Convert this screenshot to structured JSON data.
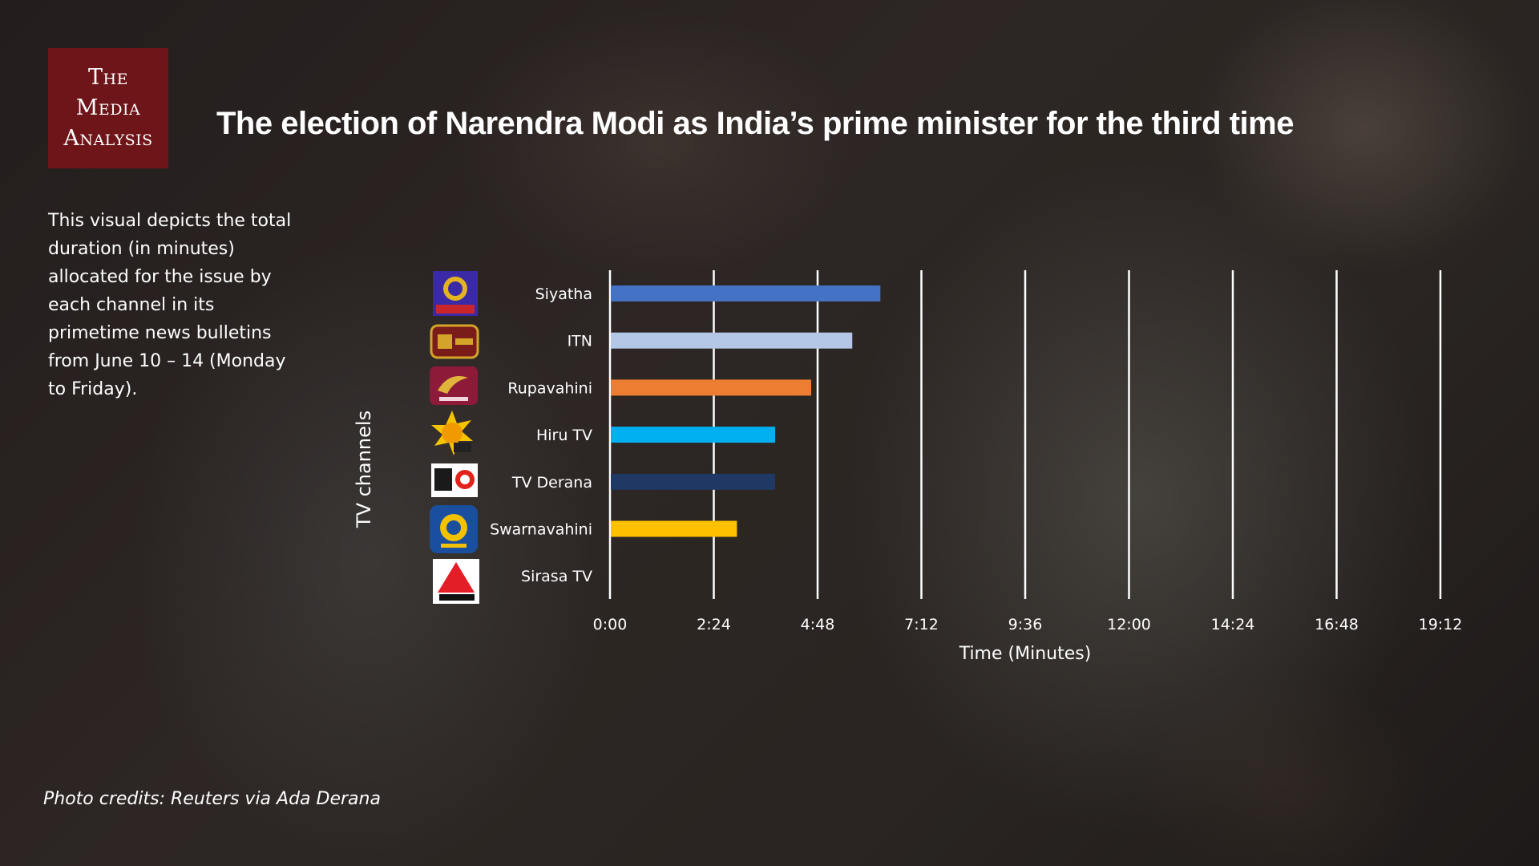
{
  "logo": {
    "lines": [
      "The",
      "Media",
      "Analysis"
    ]
  },
  "title": "The election of Narendra Modi as India’s prime minister for the third time",
  "description": "This visual depicts the total duration  (in minutes) allocated for the issue by each channel in its primetime news bulletins from June 10 – 14  (Monday to Friday).",
  "credits": "Photo credits: Reuters via Ada Derana",
  "colors": {
    "logo_bg": "#6d1519",
    "gridline": "#ffffff",
    "text": "#ffffff"
  },
  "chart_data": {
    "type": "bar",
    "orientation": "horizontal",
    "xlabel": "Time (Minutes)",
    "ylabel": "TV channels",
    "x_unit": "minutes (m:ss)",
    "xlim": [
      0,
      1152
    ],
    "x_ticks_seconds": [
      0,
      144,
      288,
      432,
      576,
      720,
      864,
      1008,
      1152
    ],
    "x_tick_labels": [
      "0:00",
      "2:24",
      "4:48",
      "7:12",
      "9:36",
      "12:00",
      "14:24",
      "16:48",
      "19:12"
    ],
    "grid": "vertical",
    "categories": [
      "Siyatha",
      "ITN",
      "Rupavahini",
      "Hiru TV",
      "TV Derana",
      "Swarnavahini",
      "Sirasa TV"
    ],
    "values_seconds": [
      374,
      335,
      278,
      228,
      228,
      175,
      0
    ],
    "bar_colors": [
      "#4472c4",
      "#b4c7e7",
      "#ed7d31",
      "#00b0f0",
      "#203864",
      "#ffc000",
      "#7f7f7f"
    ],
    "channel_icons": [
      "siyatha-tv-logo-icon",
      "itn-sri-lanka-logo-icon",
      "rupavahini-logo-icon",
      "hiru-tv-logo-icon",
      "tv-derana-logo-icon",
      "swarnavahini-logo-icon",
      "sirasa-tv-logo-icon"
    ]
  }
}
